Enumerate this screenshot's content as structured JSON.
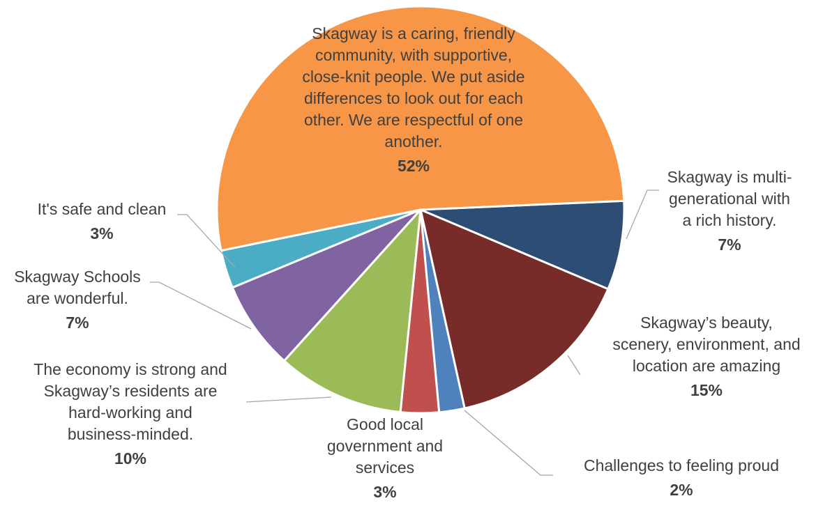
{
  "chart_data": {
    "type": "pie",
    "title": "",
    "legend": "none",
    "start_angle_deg": 90,
    "slices": [
      {
        "label": "Skagway is multi-generational with a rich history.",
        "value": 7,
        "pct_label": "7%",
        "color": "#2E4D74"
      },
      {
        "label": "Skagway’s beauty, scenery, environment, and location are amazing",
        "value": 15,
        "pct_label": "15%",
        "color": "#772C2A"
      },
      {
        "label": "Challenges to feeling proud",
        "value": 2,
        "pct_label": "2%",
        "color": "#4F81BD"
      },
      {
        "label": "Good local government and services",
        "value": 3,
        "pct_label": "3%",
        "color": "#C0504D"
      },
      {
        "label": "The economy is strong and Skagway’s residents are hard-working and business-minded.",
        "value": 10,
        "pct_label": "10%",
        "color": "#9BBB59"
      },
      {
        "label": "Skagway Schools are wonderful.",
        "value": 7,
        "pct_label": "7%",
        "color": "#8064A2"
      },
      {
        "label": "It's safe and clean",
        "value": 3,
        "pct_label": "3%",
        "color": "#4BACC6"
      },
      {
        "label": "Skagway is a caring, friendly community, with supportive, close-knit people. We put aside differences to look out for each other. We are respectful of one another.",
        "value": 52,
        "pct_label": "52%",
        "color": "#F79646"
      }
    ]
  }
}
